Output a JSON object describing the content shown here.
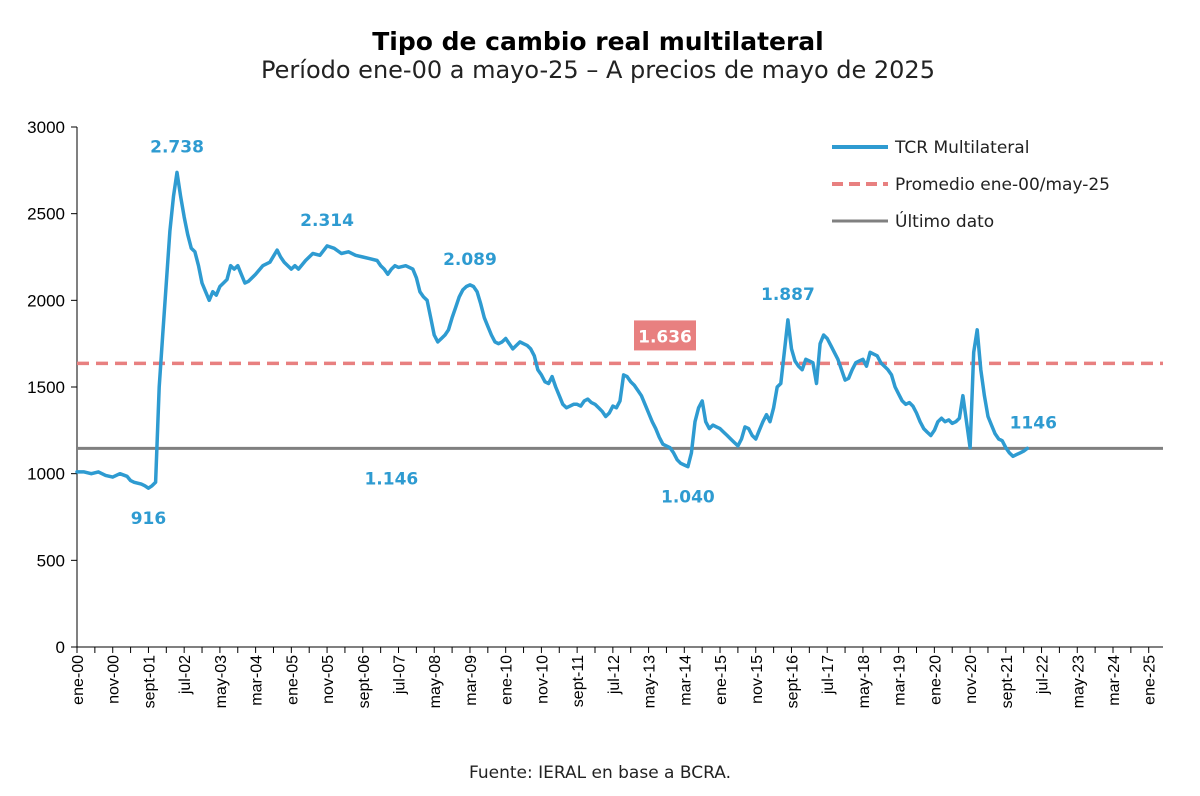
{
  "chart_data": {
    "type": "line",
    "title": "Tipo de cambio real multilateral",
    "subtitle": "Período ene-00 a mayo-25 – A precios de mayo de 2025",
    "source": "Fuente: IERAL en base a BCRA.",
    "ylim": [
      0,
      3000
    ],
    "yticks": [
      "0",
      "500",
      "1000",
      "1500",
      "2000",
      "2500",
      "3000"
    ],
    "xlim": [
      0,
      304
    ],
    "xticks": [
      {
        "label": "ene-00",
        "x": 0
      },
      {
        "label": "nov-00",
        "x": 10
      },
      {
        "label": "sept-01",
        "x": 20
      },
      {
        "label": "jul-02",
        "x": 30
      },
      {
        "label": "may-03",
        "x": 40
      },
      {
        "label": "mar-04",
        "x": 50
      },
      {
        "label": "ene-05",
        "x": 60
      },
      {
        "label": "nov-05",
        "x": 70
      },
      {
        "label": "sept-06",
        "x": 80
      },
      {
        "label": "jul-07",
        "x": 90
      },
      {
        "label": "may-08",
        "x": 100
      },
      {
        "label": "mar-09",
        "x": 110
      },
      {
        "label": "ene-10",
        "x": 120
      },
      {
        "label": "nov-10",
        "x": 130
      },
      {
        "label": "sept-11",
        "x": 140
      },
      {
        "label": "jul-12",
        "x": 150
      },
      {
        "label": "may-13",
        "x": 160
      },
      {
        "label": "mar-14",
        "x": 170
      },
      {
        "label": "ene-15",
        "x": 180
      },
      {
        "label": "nov-15",
        "x": 190
      },
      {
        "label": "sept-16",
        "x": 200
      },
      {
        "label": "jul-17",
        "x": 210
      },
      {
        "label": "may-18",
        "x": 220
      },
      {
        "label": "mar-19",
        "x": 230
      },
      {
        "label": "ene-20",
        "x": 240
      },
      {
        "label": "nov-20",
        "x": 250
      },
      {
        "label": "sept-21",
        "x": 260
      },
      {
        "label": "jul-22",
        "x": 270
      },
      {
        "label": "may-23",
        "x": 280
      },
      {
        "label": "mar-24",
        "x": 290
      },
      {
        "label": "ene-25",
        "x": 300
      }
    ],
    "series": [
      {
        "name": "TCR Multilateral",
        "color": "#2e9bd1",
        "style": "solid",
        "points": [
          [
            0,
            1010
          ],
          [
            2,
            1010
          ],
          [
            4,
            1000
          ],
          [
            6,
            1010
          ],
          [
            8,
            990
          ],
          [
            10,
            980
          ],
          [
            12,
            1000
          ],
          [
            14,
            985
          ],
          [
            15,
            960
          ],
          [
            16,
            950
          ],
          [
            18,
            940
          ],
          [
            19,
            930
          ],
          [
            20,
            916
          ],
          [
            21,
            930
          ],
          [
            22,
            950
          ],
          [
            23,
            1500
          ],
          [
            24,
            1800
          ],
          [
            25,
            2100
          ],
          [
            26,
            2400
          ],
          [
            27,
            2600
          ],
          [
            28,
            2738
          ],
          [
            29,
            2600
          ],
          [
            30,
            2480
          ],
          [
            31,
            2380
          ],
          [
            32,
            2300
          ],
          [
            33,
            2280
          ],
          [
            34,
            2200
          ],
          [
            35,
            2100
          ],
          [
            36,
            2050
          ],
          [
            37,
            2000
          ],
          [
            38,
            2050
          ],
          [
            39,
            2030
          ],
          [
            40,
            2080
          ],
          [
            41,
            2100
          ],
          [
            42,
            2120
          ],
          [
            43,
            2200
          ],
          [
            44,
            2180
          ],
          [
            45,
            2200
          ],
          [
            46,
            2150
          ],
          [
            47,
            2100
          ],
          [
            48,
            2110
          ],
          [
            50,
            2150
          ],
          [
            52,
            2200
          ],
          [
            54,
            2220
          ],
          [
            56,
            2290
          ],
          [
            57,
            2250
          ],
          [
            58,
            2220
          ],
          [
            59,
            2200
          ],
          [
            60,
            2180
          ],
          [
            61,
            2200
          ],
          [
            62,
            2180
          ],
          [
            64,
            2230
          ],
          [
            66,
            2270
          ],
          [
            68,
            2260
          ],
          [
            70,
            2314
          ],
          [
            72,
            2300
          ],
          [
            74,
            2270
          ],
          [
            76,
            2280
          ],
          [
            78,
            2260
          ],
          [
            80,
            2250
          ],
          [
            82,
            2240
          ],
          [
            84,
            2230
          ],
          [
            85,
            2200
          ],
          [
            86,
            2180
          ],
          [
            87,
            2150
          ],
          [
            88,
            2180
          ],
          [
            89,
            2200
          ],
          [
            90,
            2190
          ],
          [
            92,
            2200
          ],
          [
            94,
            2180
          ],
          [
            95,
            2130
          ],
          [
            96,
            2050
          ],
          [
            97,
            2020
          ],
          [
            98,
            2000
          ],
          [
            99,
            1900
          ],
          [
            100,
            1800
          ],
          [
            101,
            1760
          ],
          [
            102,
            1780
          ],
          [
            103,
            1800
          ],
          [
            104,
            1830
          ],
          [
            105,
            1900
          ],
          [
            106,
            1960
          ],
          [
            107,
            2020
          ],
          [
            108,
            2060
          ],
          [
            109,
            2080
          ],
          [
            110,
            2089
          ],
          [
            111,
            2080
          ],
          [
            112,
            2050
          ],
          [
            113,
            1980
          ],
          [
            114,
            1900
          ],
          [
            115,
            1850
          ],
          [
            116,
            1800
          ],
          [
            117,
            1760
          ],
          [
            118,
            1750
          ],
          [
            119,
            1760
          ],
          [
            120,
            1780
          ],
          [
            121,
            1750
          ],
          [
            122,
            1720
          ],
          [
            123,
            1740
          ],
          [
            124,
            1760
          ],
          [
            125,
            1750
          ],
          [
            126,
            1740
          ],
          [
            127,
            1720
          ],
          [
            128,
            1680
          ],
          [
            129,
            1600
          ],
          [
            130,
            1570
          ],
          [
            131,
            1530
          ],
          [
            132,
            1520
          ],
          [
            133,
            1560
          ],
          [
            134,
            1500
          ],
          [
            135,
            1450
          ],
          [
            136,
            1400
          ],
          [
            137,
            1380
          ],
          [
            138,
            1390
          ],
          [
            139,
            1400
          ],
          [
            140,
            1400
          ],
          [
            141,
            1390
          ],
          [
            142,
            1420
          ],
          [
            143,
            1430
          ],
          [
            144,
            1410
          ],
          [
            145,
            1400
          ],
          [
            146,
            1380
          ],
          [
            147,
            1360
          ],
          [
            148,
            1330
          ],
          [
            149,
            1350
          ],
          [
            150,
            1390
          ],
          [
            151,
            1380
          ],
          [
            152,
            1420
          ],
          [
            153,
            1570
          ],
          [
            154,
            1560
          ],
          [
            155,
            1530
          ],
          [
            156,
            1510
          ],
          [
            157,
            1480
          ],
          [
            158,
            1450
          ],
          [
            159,
            1400
          ],
          [
            160,
            1350
          ],
          [
            161,
            1300
          ],
          [
            162,
            1260
          ],
          [
            163,
            1210
          ],
          [
            164,
            1170
          ],
          [
            165,
            1160
          ],
          [
            166,
            1150
          ],
          [
            167,
            1120
          ],
          [
            168,
            1080
          ],
          [
            169,
            1060
          ],
          [
            170,
            1050
          ],
          [
            171,
            1040
          ],
          [
            172,
            1120
          ],
          [
            173,
            1300
          ],
          [
            174,
            1380
          ],
          [
            175,
            1420
          ],
          [
            176,
            1300
          ],
          [
            177,
            1260
          ],
          [
            178,
            1280
          ],
          [
            179,
            1270
          ],
          [
            180,
            1260
          ],
          [
            181,
            1240
          ],
          [
            182,
            1220
          ],
          [
            183,
            1200
          ],
          [
            184,
            1180
          ],
          [
            185,
            1160
          ],
          [
            186,
            1200
          ],
          [
            187,
            1270
          ],
          [
            188,
            1260
          ],
          [
            189,
            1220
          ],
          [
            190,
            1200
          ],
          [
            191,
            1250
          ],
          [
            192,
            1300
          ],
          [
            193,
            1340
          ],
          [
            194,
            1300
          ],
          [
            195,
            1380
          ],
          [
            196,
            1500
          ],
          [
            197,
            1520
          ],
          [
            198,
            1700
          ],
          [
            199,
            1887
          ],
          [
            200,
            1720
          ],
          [
            201,
            1650
          ],
          [
            202,
            1620
          ],
          [
            203,
            1600
          ],
          [
            204,
            1660
          ],
          [
            205,
            1650
          ],
          [
            206,
            1640
          ],
          [
            207,
            1520
          ],
          [
            208,
            1750
          ],
          [
            209,
            1800
          ],
          [
            210,
            1780
          ],
          [
            211,
            1740
          ],
          [
            212,
            1700
          ],
          [
            213,
            1660
          ],
          [
            214,
            1600
          ],
          [
            215,
            1540
          ],
          [
            216,
            1550
          ],
          [
            217,
            1600
          ],
          [
            218,
            1640
          ],
          [
            219,
            1650
          ],
          [
            220,
            1660
          ],
          [
            221,
            1620
          ],
          [
            222,
            1700
          ],
          [
            223,
            1690
          ],
          [
            224,
            1680
          ],
          [
            225,
            1640
          ],
          [
            226,
            1620
          ],
          [
            227,
            1600
          ],
          [
            228,
            1570
          ],
          [
            229,
            1500
          ],
          [
            230,
            1460
          ],
          [
            231,
            1420
          ],
          [
            232,
            1400
          ],
          [
            233,
            1410
          ],
          [
            234,
            1390
          ],
          [
            235,
            1350
          ],
          [
            236,
            1300
          ],
          [
            237,
            1260
          ],
          [
            238,
            1240
          ],
          [
            239,
            1220
          ],
          [
            240,
            1250
          ],
          [
            241,
            1300
          ],
          [
            242,
            1320
          ],
          [
            243,
            1300
          ],
          [
            244,
            1310
          ],
          [
            245,
            1290
          ],
          [
            246,
            1300
          ],
          [
            247,
            1320
          ],
          [
            248,
            1450
          ],
          [
            249,
            1300
          ],
          [
            250,
            1150
          ],
          [
            251,
            1700
          ],
          [
            252,
            1830
          ],
          [
            253,
            1600
          ],
          [
            254,
            1450
          ],
          [
            255,
            1330
          ],
          [
            256,
            1280
          ],
          [
            257,
            1230
          ],
          [
            258,
            1200
          ],
          [
            259,
            1190
          ],
          [
            260,
            1150
          ],
          [
            261,
            1120
          ],
          [
            262,
            1100
          ],
          [
            263,
            1110
          ],
          [
            264,
            1120
          ],
          [
            265,
            1130
          ],
          [
            266,
            1146
          ]
        ]
      },
      {
        "name": "Promedio ene-00/may-25",
        "color": "#e88080",
        "style": "dashed",
        "value": 1636
      },
      {
        "name": "Último dato",
        "color": "#808080",
        "style": "solid",
        "value": 1146
      }
    ],
    "annotations": [
      {
        "text": "2.738",
        "x": 28,
        "y": 2738,
        "pos": "above",
        "color": "#2e9bd1"
      },
      {
        "text": "916",
        "x": 20,
        "y": 916,
        "pos": "below",
        "color": "#2e9bd1"
      },
      {
        "text": "2.314",
        "x": 70,
        "y": 2314,
        "pos": "above",
        "color": "#2e9bd1"
      },
      {
        "text": "2.089",
        "x": 110,
        "y": 2089,
        "pos": "above",
        "color": "#2e9bd1"
      },
      {
        "text": "1.146",
        "x": 88,
        "y": 1146,
        "pos": "below",
        "color": "#2e9bd1"
      },
      {
        "text": "1.040",
        "x": 171,
        "y": 1040,
        "pos": "below",
        "color": "#2e9bd1"
      },
      {
        "text": "1.887",
        "x": 199,
        "y": 1887,
        "pos": "above",
        "color": "#2e9bd1"
      },
      {
        "text": "1146",
        "x": 266,
        "y": 1146,
        "pos": "above",
        "color": "#2e9bd1"
      },
      {
        "text": "1.636",
        "x": 152,
        "y": 1636,
        "pos": "boxed",
        "color": "#ffffff",
        "box": "#e88080"
      }
    ],
    "legend": {
      "position": "top-right"
    }
  }
}
